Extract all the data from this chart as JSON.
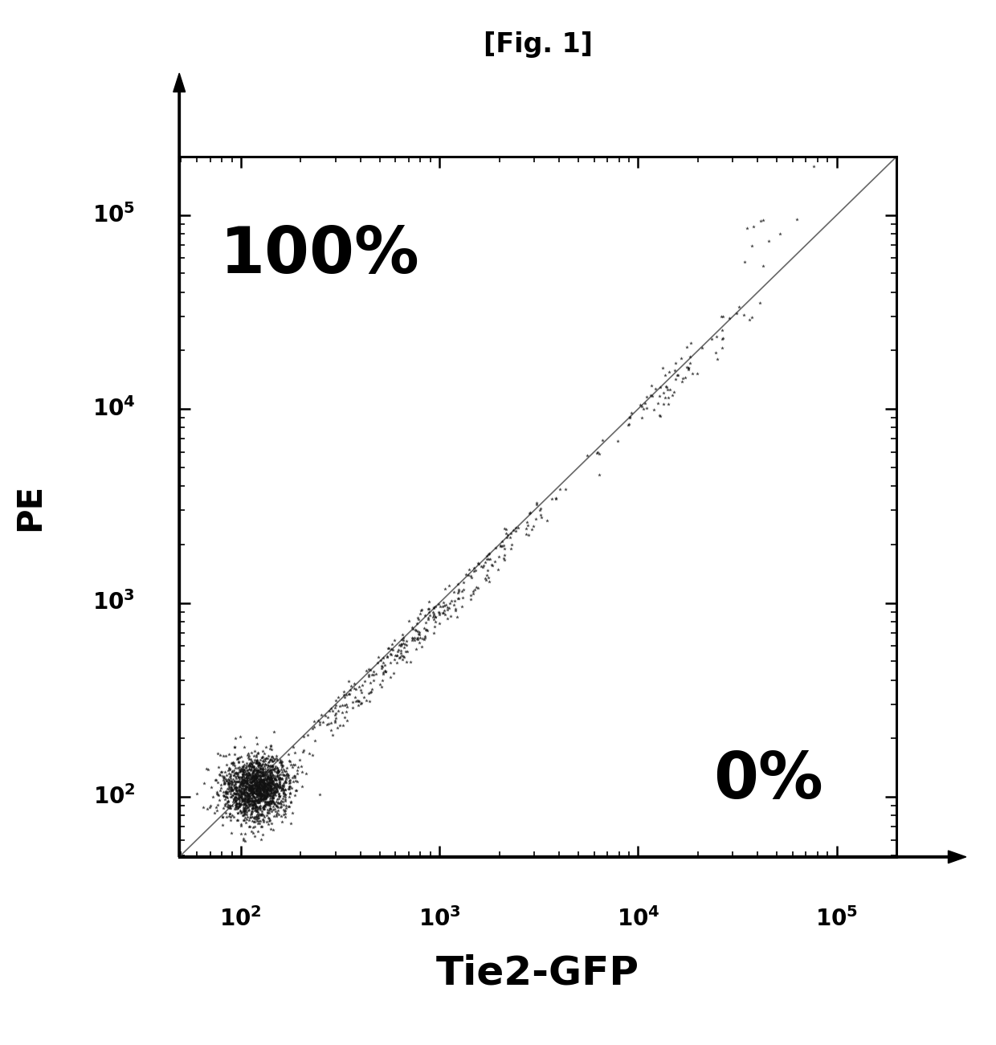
{
  "title": "[Fig. 1]",
  "xlabel": "Tie2-GFP",
  "ylabel": "PE",
  "xlim_log": [
    1.69,
    5.3
  ],
  "ylim_log": [
    1.69,
    5.3
  ],
  "label_100pct": "100%",
  "label_0pct": "0%",
  "background_color": "#ffffff",
  "scatter_color": "#111111",
  "title_fontsize": 24,
  "xlabel_fontsize": 36,
  "ylabel_fontsize": 30,
  "pct_fontsize": 58,
  "tick_fontsize": 20,
  "seed": 42
}
